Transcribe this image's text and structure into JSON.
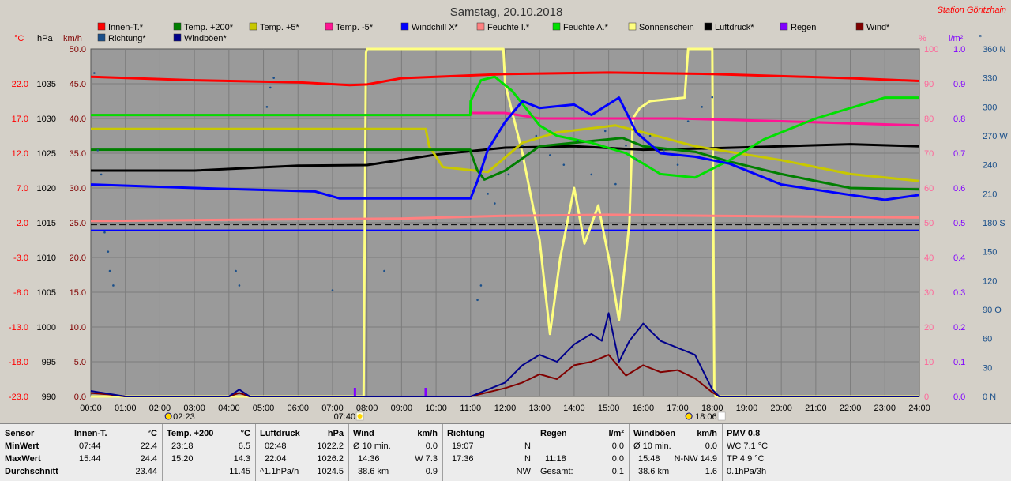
{
  "title": "Samstag, 20.10.2018",
  "station": "Station Göritzhain",
  "colors": {
    "plot_bg": "#9a9a9a",
    "grid": "#7c7c7c",
    "innen": "#ff0000",
    "temp200": "#007f00",
    "temp5": "#c8c800",
    "tempm5": "#ff1493",
    "windchill": "#0000ff",
    "feuchte_i": "#ff8080",
    "feuchte_a": "#00e000",
    "sonne": "#ffff80",
    "luftdruck": "#000000",
    "regen": "#8000ff",
    "wind": "#800000",
    "richtung": "#1a4f8a",
    "windboeen": "#00008b",
    "right_pct": "#ff6699",
    "right_lm2": "#8000ff",
    "right_deg": "#1a4f8a"
  },
  "legend": [
    {
      "label": "Innen-T.*",
      "color": "#ff0000"
    },
    {
      "label": "Temp. +200*",
      "color": "#007f00"
    },
    {
      "label": "Temp. +5*",
      "color": "#c8c800"
    },
    {
      "label": "Temp. -5*",
      "color": "#ff1493"
    },
    {
      "label": "Windchill X*",
      "color": "#0000ff"
    },
    {
      "label": "Feuchte I.*",
      "color": "#ff8080"
    },
    {
      "label": "Feuchte A.*",
      "color": "#00e000"
    },
    {
      "label": "Sonnenschein",
      "color": "#ffff80"
    },
    {
      "label": "Luftdruck*",
      "color": "#000000"
    },
    {
      "label": "Regen",
      "color": "#8000ff"
    },
    {
      "label": "Wind*",
      "color": "#800000"
    },
    {
      "label": "Richtung*",
      "color": "#1a4f8a"
    },
    {
      "label": "Windböen*",
      "color": "#00008b"
    }
  ],
  "axis_units": {
    "temp": "°C",
    "pressure": "hPa",
    "wind": "km/h",
    "percent": "%",
    "rain": "l/m²",
    "degrees": "°"
  },
  "axis_ticks": {
    "temp": [
      "22.0",
      "17.0",
      "12.0",
      "7.0",
      "2.0",
      "-3.0",
      "-8.0",
      "-13.0",
      "-18.0",
      "-23.0"
    ],
    "pressure": [
      "1035",
      "1030",
      "1025",
      "1020",
      "1015",
      "1010",
      "1005",
      "1000",
      "995",
      "990"
    ],
    "wind": [
      "50.0",
      "45.0",
      "40.0",
      "35.0",
      "30.0",
      "25.0",
      "20.0",
      "15.0",
      "10.0",
      "5.0",
      "0.0"
    ],
    "percent": [
      "100",
      "90",
      "80",
      "70",
      "60",
      "50",
      "40",
      "30",
      "20",
      "10",
      "0"
    ],
    "rain": [
      "1.0",
      "0.9",
      "0.8",
      "0.7",
      "0.6",
      "0.5",
      "0.4",
      "0.3",
      "0.2",
      "0.1",
      "0.0"
    ],
    "degrees": [
      "360 N",
      "330",
      "300",
      "270 W",
      "240",
      "210",
      "180 S",
      "150",
      "120",
      "90 O",
      "60",
      "30",
      "0 N"
    ],
    "time": [
      "00:00",
      "01:00",
      "02:00",
      "03:00",
      "04:00",
      "05:00",
      "06:00",
      "07:00",
      "08:00",
      "09:00",
      "10:00",
      "11:00",
      "12:00",
      "13:00",
      "14:00",
      "15:00",
      "16:00",
      "17:00",
      "18:00",
      "19:00",
      "20:00",
      "21:00",
      "22:00",
      "23:00",
      "24:00"
    ]
  },
  "sun_events": {
    "moonset": "02:23",
    "sunrise": "07:40",
    "sunset": "18:06"
  },
  "chart_data": {
    "type": "line",
    "x_unit": "hour of day",
    "xlim": [
      0,
      24
    ],
    "series": [
      {
        "name": "Innen-T.*",
        "axis": "temp",
        "points": [
          [
            0,
            23.0
          ],
          [
            3,
            22.5
          ],
          [
            6,
            22.2
          ],
          [
            7.5,
            21.8
          ],
          [
            8,
            21.9
          ],
          [
            9,
            22.8
          ],
          [
            12,
            23.4
          ],
          [
            15,
            23.6
          ],
          [
            18,
            23.4
          ],
          [
            22,
            22.8
          ],
          [
            24,
            22.4
          ]
        ]
      },
      {
        "name": "Temp. +200*",
        "axis": "temp",
        "points": [
          [
            0,
            12.5
          ],
          [
            10.99,
            12.5
          ],
          [
            11.0,
            12.2
          ],
          [
            11.2,
            9.5
          ],
          [
            11.4,
            8.2
          ],
          [
            12,
            9.5
          ],
          [
            13,
            13.0
          ],
          [
            15.4,
            14.2
          ],
          [
            16,
            13.0
          ],
          [
            17.5,
            12.2
          ],
          [
            18.5,
            10.8
          ],
          [
            20,
            9.0
          ],
          [
            22,
            7.0
          ],
          [
            24,
            6.8
          ]
        ]
      },
      {
        "name": "Temp. +5*",
        "axis": "temp",
        "points": [
          [
            0,
            15.5
          ],
          [
            9.7,
            15.5
          ],
          [
            9.8,
            13.0
          ],
          [
            10.2,
            10.0
          ],
          [
            11.5,
            9.3
          ],
          [
            12.5,
            13.5
          ],
          [
            13.5,
            15.0
          ],
          [
            15.2,
            16.0
          ],
          [
            16,
            15.0
          ],
          [
            17.5,
            13.0
          ],
          [
            20,
            11.0
          ],
          [
            22,
            9.0
          ],
          [
            24,
            8.0
          ]
        ]
      },
      {
        "name": "Temp. -5*",
        "axis": "temp",
        "points": [
          [
            0,
            17.5
          ],
          [
            10.99,
            17.5
          ],
          [
            11.0,
            17.8
          ],
          [
            12,
            17.8
          ],
          [
            13,
            17.0
          ],
          [
            15,
            17.0
          ],
          [
            17,
            17.0
          ],
          [
            20,
            16.6
          ],
          [
            24,
            16.0
          ]
        ]
      },
      {
        "name": "Windchill X*",
        "axis": "temp",
        "points": [
          [
            0,
            7.5
          ],
          [
            3,
            7.0
          ],
          [
            6.5,
            6.5
          ],
          [
            7.2,
            5.5
          ],
          [
            11.0,
            5.5
          ],
          [
            11.2,
            8.0
          ],
          [
            11.5,
            12.5
          ],
          [
            12,
            16.5
          ],
          [
            12.5,
            19.5
          ],
          [
            13,
            18.5
          ],
          [
            14,
            19.0
          ],
          [
            14.5,
            17.5
          ],
          [
            15.3,
            20.0
          ],
          [
            15.8,
            15.0
          ],
          [
            16.5,
            12.0
          ],
          [
            17.5,
            11.5
          ],
          [
            18.5,
            10.5
          ],
          [
            20,
            7.5
          ],
          [
            22,
            6.0
          ],
          [
            23,
            5.3
          ],
          [
            24,
            6.0
          ]
        ]
      },
      {
        "name": "Feuchte I.*",
        "axis": "percent",
        "points": [
          [
            0,
            50.5
          ],
          [
            6,
            51.0
          ],
          [
            9,
            51.2
          ],
          [
            12,
            52.0
          ],
          [
            15,
            52.3
          ],
          [
            18,
            52.0
          ],
          [
            24,
            51.5
          ]
        ]
      },
      {
        "name": "Feuchte A.*",
        "axis": "percent",
        "points": [
          [
            0,
            81
          ],
          [
            10.99,
            81
          ],
          [
            11.0,
            85
          ],
          [
            11.3,
            91
          ],
          [
            11.7,
            92
          ],
          [
            12.2,
            88
          ],
          [
            12.6,
            83
          ],
          [
            13,
            78
          ],
          [
            13.5,
            75
          ],
          [
            14.5,
            73
          ],
          [
            15.5,
            70
          ],
          [
            16.5,
            64
          ],
          [
            17.5,
            63
          ],
          [
            18.5,
            68
          ],
          [
            19.5,
            74
          ],
          [
            21,
            80
          ],
          [
            23,
            86
          ],
          [
            24,
            86
          ]
        ]
      },
      {
        "name": "Sonnenschein",
        "axis": "percent",
        "points": [
          [
            0,
            0
          ],
          [
            7.9,
            0
          ],
          [
            7.97,
            99
          ],
          [
            8,
            100
          ],
          [
            11.95,
            100
          ],
          [
            12.0,
            90
          ],
          [
            12.5,
            70
          ],
          [
            13,
            45
          ],
          [
            13.3,
            18
          ],
          [
            13.6,
            40
          ],
          [
            14,
            60
          ],
          [
            14.3,
            44
          ],
          [
            14.7,
            55
          ],
          [
            15,
            40
          ],
          [
            15.3,
            22
          ],
          [
            15.6,
            50
          ],
          [
            15.7,
            80
          ],
          [
            15.9,
            83
          ],
          [
            16.2,
            85
          ],
          [
            17.2,
            86
          ],
          [
            17.3,
            100
          ],
          [
            18.0,
            100
          ],
          [
            18.06,
            2
          ],
          [
            18.1,
            0
          ],
          [
            24,
            0
          ]
        ]
      },
      {
        "name": "Luftdruck*",
        "axis": "pressure",
        "points": [
          [
            0,
            1022.5
          ],
          [
            3,
            1022.5
          ],
          [
            6,
            1023.2
          ],
          [
            8,
            1023.3
          ],
          [
            10,
            1024.8
          ],
          [
            12,
            1025.8
          ],
          [
            14,
            1026.0
          ],
          [
            16,
            1025.5
          ],
          [
            18,
            1025.7
          ],
          [
            20,
            1026.0
          ],
          [
            22,
            1026.3
          ],
          [
            24,
            1026.0
          ]
        ]
      },
      {
        "name": "Wind*",
        "axis": "wind",
        "points": [
          [
            0,
            0.5
          ],
          [
            0.5,
            0.3
          ],
          [
            1,
            0
          ],
          [
            4,
            0
          ],
          [
            4.3,
            0.5
          ],
          [
            4.6,
            0
          ],
          [
            11,
            0
          ],
          [
            11.5,
            0.6
          ],
          [
            12,
            1.2
          ],
          [
            12.5,
            2.0
          ],
          [
            13,
            3.2
          ],
          [
            13.5,
            2.5
          ],
          [
            14,
            4.5
          ],
          [
            14.5,
            5.0
          ],
          [
            15,
            6.0
          ],
          [
            15.5,
            3.0
          ],
          [
            16,
            4.5
          ],
          [
            16.5,
            3.5
          ],
          [
            17,
            3.8
          ],
          [
            17.5,
            2.6
          ],
          [
            18,
            0.6
          ],
          [
            18.2,
            0
          ],
          [
            24,
            0
          ]
        ]
      },
      {
        "name": "Windböen*",
        "axis": "wind",
        "points": [
          [
            0,
            0.8
          ],
          [
            0.5,
            0.4
          ],
          [
            1,
            0
          ],
          [
            4,
            0
          ],
          [
            4.3,
            1.0
          ],
          [
            4.6,
            0
          ],
          [
            11,
            0
          ],
          [
            11.5,
            1.0
          ],
          [
            12,
            2.0
          ],
          [
            12.5,
            4.5
          ],
          [
            13,
            6.0
          ],
          [
            13.5,
            5.0
          ],
          [
            14,
            7.5
          ],
          [
            14.5,
            9.0
          ],
          [
            14.8,
            8.0
          ],
          [
            15,
            12.0
          ],
          [
            15.3,
            5.0
          ],
          [
            15.6,
            8.0
          ],
          [
            16,
            10.5
          ],
          [
            16.5,
            8.0
          ],
          [
            17,
            7.0
          ],
          [
            17.5,
            6.0
          ],
          [
            18,
            1.0
          ],
          [
            18.2,
            0
          ],
          [
            24,
            0
          ]
        ]
      },
      {
        "name": "Richtung*",
        "axis": "degrees",
        "type": "scatter",
        "points": [
          [
            0.1,
            335
          ],
          [
            0.2,
            255
          ],
          [
            0.3,
            230
          ],
          [
            0.4,
            170
          ],
          [
            0.5,
            150
          ],
          [
            0.55,
            130
          ],
          [
            0.65,
            115
          ],
          [
            4.2,
            130
          ],
          [
            4.3,
            115
          ],
          [
            5.1,
            300
          ],
          [
            5.2,
            320
          ],
          [
            5.3,
            330
          ],
          [
            7.0,
            110
          ],
          [
            8.5,
            130
          ],
          [
            11.2,
            100
          ],
          [
            11.3,
            115
          ],
          [
            11.5,
            210
          ],
          [
            11.7,
            200
          ],
          [
            12.1,
            230
          ],
          [
            12.5,
            260
          ],
          [
            12.9,
            270
          ],
          [
            13.3,
            250
          ],
          [
            13.7,
            240
          ],
          [
            14.1,
            265
          ],
          [
            14.5,
            230
          ],
          [
            14.9,
            275
          ],
          [
            15.2,
            220
          ],
          [
            15.5,
            260
          ],
          [
            15.8,
            245
          ],
          [
            16.2,
            270
          ],
          [
            16.6,
            255
          ],
          [
            17.0,
            240
          ],
          [
            17.3,
            285
          ],
          [
            17.7,
            300
          ],
          [
            18.0,
            310
          ]
        ]
      },
      {
        "name": "Regen",
        "axis": "rain",
        "type": "bar",
        "points": [
          [
            7.65,
            0.025
          ],
          [
            9.7,
            0.025
          ]
        ]
      }
    ],
    "reference_lines": [
      {
        "axis": "wind",
        "value": 24.7,
        "style": "dashed",
        "color": "#000000"
      },
      {
        "axis": "wind",
        "value": 23.9,
        "style": "solid",
        "color": "#0000ff"
      }
    ]
  },
  "stats": {
    "sensor": {
      "title": "Sensor",
      "rows": [
        "MinWert",
        "MaxWert",
        "Durchschnitt"
      ]
    },
    "innen": {
      "title": "Innen-T.",
      "unit": "°C",
      "rows": [
        [
          "07:44",
          "22.4"
        ],
        [
          "15:44",
          "24.4"
        ],
        [
          "",
          "23.44"
        ]
      ]
    },
    "temp200": {
      "title": "Temp. +200",
      "unit": "°C",
      "rows": [
        [
          "23:18",
          "6.5"
        ],
        [
          "15:20",
          "14.3"
        ],
        [
          "",
          "11.45"
        ]
      ]
    },
    "luftdruck": {
      "title": "Luftdruck",
      "unit": "hPa",
      "rows": [
        [
          "02:48",
          "1022.2"
        ],
        [
          "22:04",
          "1026.2"
        ],
        [
          "^1.1hPa/h",
          "1024.5"
        ]
      ]
    },
    "wind": {
      "title": "Wind",
      "unit": "km/h",
      "rows": [
        [
          "Ø 10 min.",
          "0.0"
        ],
        [
          "14:36",
          "W 7.3"
        ],
        [
          "38.6 km",
          "0.9"
        ]
      ]
    },
    "richtung": {
      "title": "Richtung",
      "rows": [
        [
          "19:07",
          "N"
        ],
        [
          "17:36",
          "N"
        ],
        [
          "",
          "NW"
        ]
      ]
    },
    "regen": {
      "title": "Regen",
      "unit": "l/m²",
      "rows": [
        [
          "",
          "0.0"
        ],
        [
          "11:18",
          "0.0"
        ],
        [
          "Gesamt:",
          "0.1"
        ]
      ]
    },
    "windboeen": {
      "title": "Windböen",
      "unit": "km/h",
      "rows": [
        [
          "Ø 10 min.",
          "0.0"
        ],
        [
          "15:48",
          "N-NW 14.9"
        ],
        [
          "38.6 km",
          "1.6"
        ]
      ]
    },
    "pmv": {
      "title": "PMV 0.8",
      "rows": [
        "WC 7.1 °C",
        "TP 4.9 °C",
        "0.1hPa/3h"
      ]
    }
  }
}
